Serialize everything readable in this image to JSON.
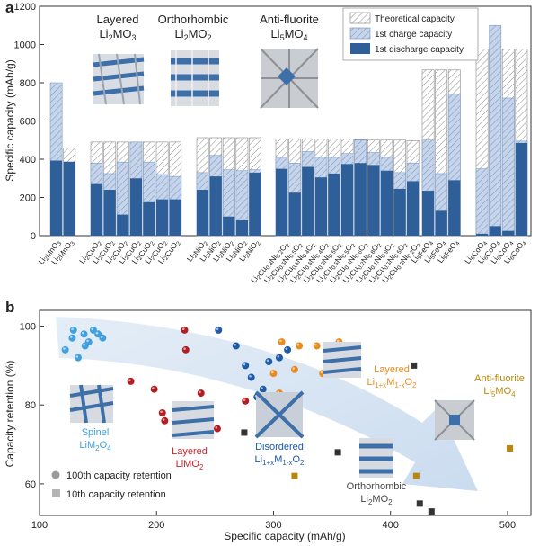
{
  "chart_data": [
    {
      "type": "bar",
      "panel_label": "a",
      "ylabel": "Specific capacity (mAh/g)",
      "ylim": [
        0,
        1200
      ],
      "yticks": [
        "0",
        "200",
        "400",
        "600",
        "800",
        "1000",
        "1200"
      ],
      "legend": {
        "position": "top-right",
        "entries": [
          "Theoretical capacity",
          "1st charge capacity",
          "1st discharge capacity"
        ],
        "colors": [
          "#ffffff",
          "#a9bedd",
          "#2f5f98"
        ]
      },
      "group_titles": [
        {
          "line1": "Layered",
          "line2": "Li",
          "sub2": "2",
          "line2b": "MO",
          "sub3": "3"
        },
        {
          "line1": "Orthorhombic",
          "line2": "Li",
          "sub2": "2",
          "line2b": "MO",
          "sub3": "2"
        },
        {
          "line1": "Anti-fluorite",
          "line2": "Li",
          "sub2": "5",
          "line2b": "MO",
          "sub3": "4"
        }
      ],
      "categories": [
        "Li2MnO3",
        "Li2MnO3",
        "Li2CuO2",
        "Li2CuO2",
        "Li2CuO2",
        "Li2CuO2",
        "Li2CuO2",
        "Li2CuO2",
        "Li2CuO2",
        "Li2NiO2",
        "Li2NiO2",
        "Li2NiO2",
        "Li2NiO2",
        "Li2NiO2",
        "Li2Cu0.8Ni0.2O2",
        "Li2Cu0.5Ni0.5O2",
        "Li2Cu0.6Ni0.4O2",
        "Li2Cu0.6Ni0.4O2",
        "Li2Cu0.5Ni0.5O2",
        "Li2Cu0.5Ni0.5O2",
        "Li2Cu0.4Ni0.6O2",
        "Li2Cu0.2Ni0.8O2",
        "Li2Cu0.1Ni0.9O2",
        "Li2Cu0.5Ni0.5O2",
        "Li2Cu0.8Ni0.2O2",
        "Li5FeO4",
        "Li5FeO4",
        "Li5FeO4",
        "Li6CoO4",
        "Li6CoO4",
        "Li6CoO4",
        "Li6CoO4"
      ],
      "series": [
        {
          "name": "Theoretical capacity",
          "values": [
            0,
            458,
            490,
            490,
            490,
            490,
            490,
            490,
            490,
            513,
            513,
            513,
            513,
            513,
            507,
            507,
            507,
            505,
            505,
            505,
            503,
            500,
            500,
            500,
            497,
            867,
            867,
            867,
            977,
            977,
            977,
            977
          ]
        },
        {
          "name": "1st charge capacity",
          "values": [
            800,
            0,
            380,
            325,
            385,
            490,
            385,
            320,
            310,
            330,
            420,
            345,
            340,
            345,
            410,
            380,
            440,
            410,
            410,
            430,
            500,
            435,
            410,
            330,
            380,
            500,
            325,
            740,
            350,
            1100,
            720,
            495
          ]
        },
        {
          "name": "1st discharge capacity",
          "values": [
            393,
            387,
            270,
            240,
            110,
            300,
            175,
            190,
            190,
            240,
            310,
            100,
            80,
            330,
            350,
            225,
            360,
            305,
            325,
            375,
            380,
            370,
            340,
            245,
            285,
            235,
            130,
            290,
            10,
            50,
            25,
            485
          ]
        }
      ]
    },
    {
      "type": "scatter",
      "panel_label": "b",
      "xlabel": "Specific capacity (mAh/g)",
      "ylabel": "Capacity retention (%)",
      "xlim": [
        100,
        520
      ],
      "ylim": [
        52,
        104
      ],
      "xticks": [
        "100",
        "200",
        "300",
        "400",
        "500"
      ],
      "yticks": [
        "60",
        "80",
        "100"
      ],
      "legend": {
        "position": "bottom-left",
        "entries": [
          "100th capacity retention",
          "10th capacity retention"
        ]
      },
      "series": [
        {
          "name": "Spinel LiM2O4",
          "color": "#3ea0de",
          "points": [
            [
              122,
              94
            ],
            [
              128,
              97
            ],
            [
              133,
              92
            ],
            [
              138,
              98
            ],
            [
              142,
              96
            ],
            [
              146,
              99
            ],
            [
              150,
              98
            ],
            [
              154,
              97
            ],
            [
              129,
              99
            ],
            [
              139,
              95
            ]
          ]
        },
        {
          "name": "Layered LiMO2",
          "color": "#b41e22",
          "points": [
            [
              178,
              86
            ],
            [
              198,
              84
            ],
            [
              205,
              78
            ],
            [
              207,
              76
            ],
            [
              218,
              80
            ],
            [
              224,
              99
            ],
            [
              225,
              94
            ],
            [
              238,
              83
            ],
            [
              252,
              74
            ],
            [
              276,
              81
            ]
          ]
        },
        {
          "name": "Disordered Li1+xM1-xO2",
          "color": "#1e5aa6",
          "points": [
            [
              253,
              99
            ],
            [
              268,
              95
            ],
            [
              276,
              90
            ],
            [
              281,
              87
            ],
            [
              286,
              82
            ],
            [
              291,
              84
            ],
            [
              296,
              91
            ],
            [
              305,
              92
            ],
            [
              312,
              94
            ]
          ]
        },
        {
          "name": "Layered Li1+xM1-xO2",
          "color": "#e98b1f",
          "points": [
            [
              300,
              88
            ],
            [
              305,
              83
            ],
            [
              307,
              96
            ],
            [
              318,
              89
            ],
            [
              322,
              95
            ],
            [
              337,
              95
            ],
            [
              342,
              88
            ],
            [
              350,
              92
            ],
            [
              356,
              96
            ]
          ]
        },
        {
          "name": "Orthorhombic Li2MO2",
          "color": "#333333",
          "marker": "square",
          "points": [
            [
              275,
              73
            ],
            [
              355,
              68
            ],
            [
              420,
              90
            ],
            [
              425,
              55
            ],
            [
              435,
              53
            ]
          ]
        },
        {
          "name": "Anti-fluorite Li5MO4",
          "color": "#b8860b",
          "marker": "square",
          "points": [
            [
              318,
              62
            ],
            [
              422,
              62
            ],
            [
              502,
              69
            ]
          ]
        }
      ],
      "labels": [
        {
          "line1": "Spinel",
          "line2": "LiM",
          "sub_a": "2",
          "line2b": "O",
          "sub_b": "4"
        },
        {
          "line1": "Layered",
          "line2": "LiMO",
          "sub_a": "2",
          "line2b": "",
          "sub_b": ""
        },
        {
          "line1": "Disordered",
          "line2": "Li",
          "sub_a": "1+x",
          "line2b": "M",
          "sub_b": "1-x",
          "line2c": "O",
          "sub_c": "2"
        },
        {
          "line1": "Layered",
          "line2": "Li",
          "sub_a": "1+x",
          "line2b": "M",
          "sub_b": "1-x",
          "line2c": "O",
          "sub_c": "2"
        },
        {
          "line1": "Anti-fluorite",
          "line2": "Li",
          "sub_a": "5",
          "line2b": "MO",
          "sub_b": "4"
        },
        {
          "line1": "Orthorhombic",
          "line2": "Li",
          "sub_a": "2",
          "line2b": "MO",
          "sub_b": "2"
        }
      ]
    }
  ]
}
